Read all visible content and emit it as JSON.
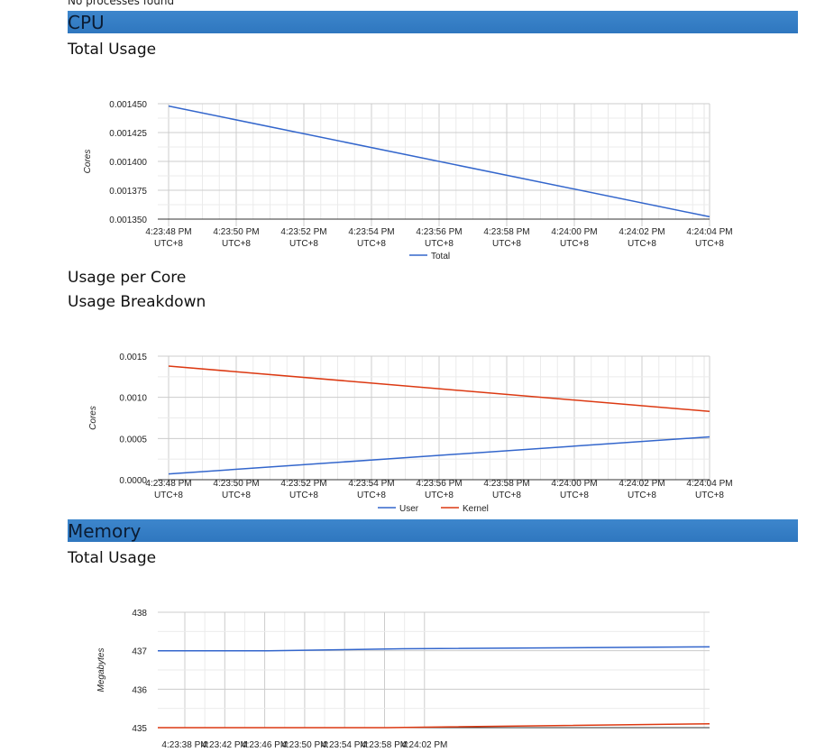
{
  "top_message": "No processes found",
  "cpu": {
    "heading": "CPU",
    "total_usage_title": "Total Usage",
    "per_core_title": "Usage per Core",
    "breakdown_title": "Usage Breakdown"
  },
  "memory": {
    "heading": "Memory",
    "total_usage_title": "Total Usage"
  },
  "chart_data": [
    {
      "type": "line",
      "title": "Total Usage",
      "xlabel": "",
      "ylabel": "Cores",
      "x": [
        "4:23:48 PM UTC+8",
        "4:23:50 PM UTC+8",
        "4:23:52 PM UTC+8",
        "4:23:54 PM UTC+8",
        "4:23:56 PM UTC+8",
        "4:23:58 PM UTC+8",
        "4:24:00 PM UTC+8",
        "4:24:02 PM UTC+8",
        "4:24:04 PM UTC+8"
      ],
      "x_tick_lines": [
        [
          "4:23:48 PM",
          "UTC+8"
        ],
        [
          "4:23:50 PM",
          "UTC+8"
        ],
        [
          "4:23:52 PM",
          "UTC+8"
        ],
        [
          "4:23:54 PM",
          "UTC+8"
        ],
        [
          "4:23:56 PM",
          "UTC+8"
        ],
        [
          "4:23:58 PM",
          "UTC+8"
        ],
        [
          "4:24:00 PM",
          "UTC+8"
        ],
        [
          "4:24:02 PM",
          "UTC+8"
        ],
        [
          "4:24:04 PM",
          "UTC+8"
        ]
      ],
      "y_ticks": [
        "0.001350",
        "0.001375",
        "0.001400",
        "0.001425",
        "0.001450"
      ],
      "ylim": [
        0.00135,
        0.00145
      ],
      "series": [
        {
          "name": "Total",
          "color": "#3366cc",
          "points": [
            [
              0,
              0.001448
            ],
            [
              8,
              0.001352
            ]
          ]
        }
      ],
      "legend": "bottom",
      "grid": true
    },
    {
      "type": "line",
      "title": "Usage Breakdown",
      "xlabel": "",
      "ylabel": "Cores",
      "x": [
        "4:23:48 PM UTC+8",
        "4:23:50 PM UTC+8",
        "4:23:52 PM UTC+8",
        "4:23:54 PM UTC+8",
        "4:23:56 PM UTC+8",
        "4:23:58 PM UTC+8",
        "4:24:00 PM UTC+8",
        "4:24:02 PM UTC+8",
        "4:24:04 PM UTC+8"
      ],
      "x_tick_lines": [
        [
          "4:23:48 PM",
          "UTC+8"
        ],
        [
          "4:23:50 PM",
          "UTC+8"
        ],
        [
          "4:23:52 PM",
          "UTC+8"
        ],
        [
          "4:23:54 PM",
          "UTC+8"
        ],
        [
          "4:23:56 PM",
          "UTC+8"
        ],
        [
          "4:23:58 PM",
          "UTC+8"
        ],
        [
          "4:24:00 PM",
          "UTC+8"
        ],
        [
          "4:24:02 PM",
          "UTC+8"
        ],
        [
          "4:24:04 PM",
          "UTC+8"
        ]
      ],
      "y_ticks": [
        "0.0000",
        "0.0005",
        "0.0010",
        "0.0015"
      ],
      "ylim": [
        0,
        0.0015
      ],
      "series": [
        {
          "name": "User",
          "color": "#3366cc",
          "points": [
            [
              0,
              7e-05
            ],
            [
              8,
              0.00052
            ]
          ]
        },
        {
          "name": "Kernel",
          "color": "#dc3912",
          "points": [
            [
              0,
              0.00138
            ],
            [
              8,
              0.00083
            ]
          ]
        }
      ],
      "legend": "bottom",
      "grid": true
    },
    {
      "type": "line",
      "title": "Total Usage",
      "xlabel": "",
      "ylabel": "Megabytes",
      "x": [
        "4:23:38 PM",
        "4:23:42 PM",
        "4:23:46 PM",
        "4:23:50 PM",
        "4:23:54 PM",
        "4:23:58 PM",
        "4:24:02 PM"
      ],
      "x_tick_lines": [
        [
          "4:23:38 PM"
        ],
        [
          "4:23:42 PM"
        ],
        [
          "4:23:46 PM"
        ],
        [
          "4:23:50 PM"
        ],
        [
          "4:23:54 PM"
        ],
        [
          "4:23:58 PM"
        ],
        [
          "4:24:02 PM"
        ]
      ],
      "y_ticks": [
        "435",
        "436",
        "437",
        "438"
      ],
      "ylim": [
        435,
        438
      ],
      "series": [
        {
          "color": "#3366cc",
          "points": [
            [
              0,
              437.0
            ],
            [
              2.7,
              437.0
            ],
            [
              6,
              437.05
            ],
            [
              13.5,
              437.1
            ]
          ]
        },
        {
          "color": "#dc3912",
          "points": [
            [
              0,
              435.0
            ],
            [
              5.6,
              435.0
            ],
            [
              13.5,
              435.1
            ]
          ]
        }
      ],
      "legend": "none",
      "grid": true
    }
  ]
}
